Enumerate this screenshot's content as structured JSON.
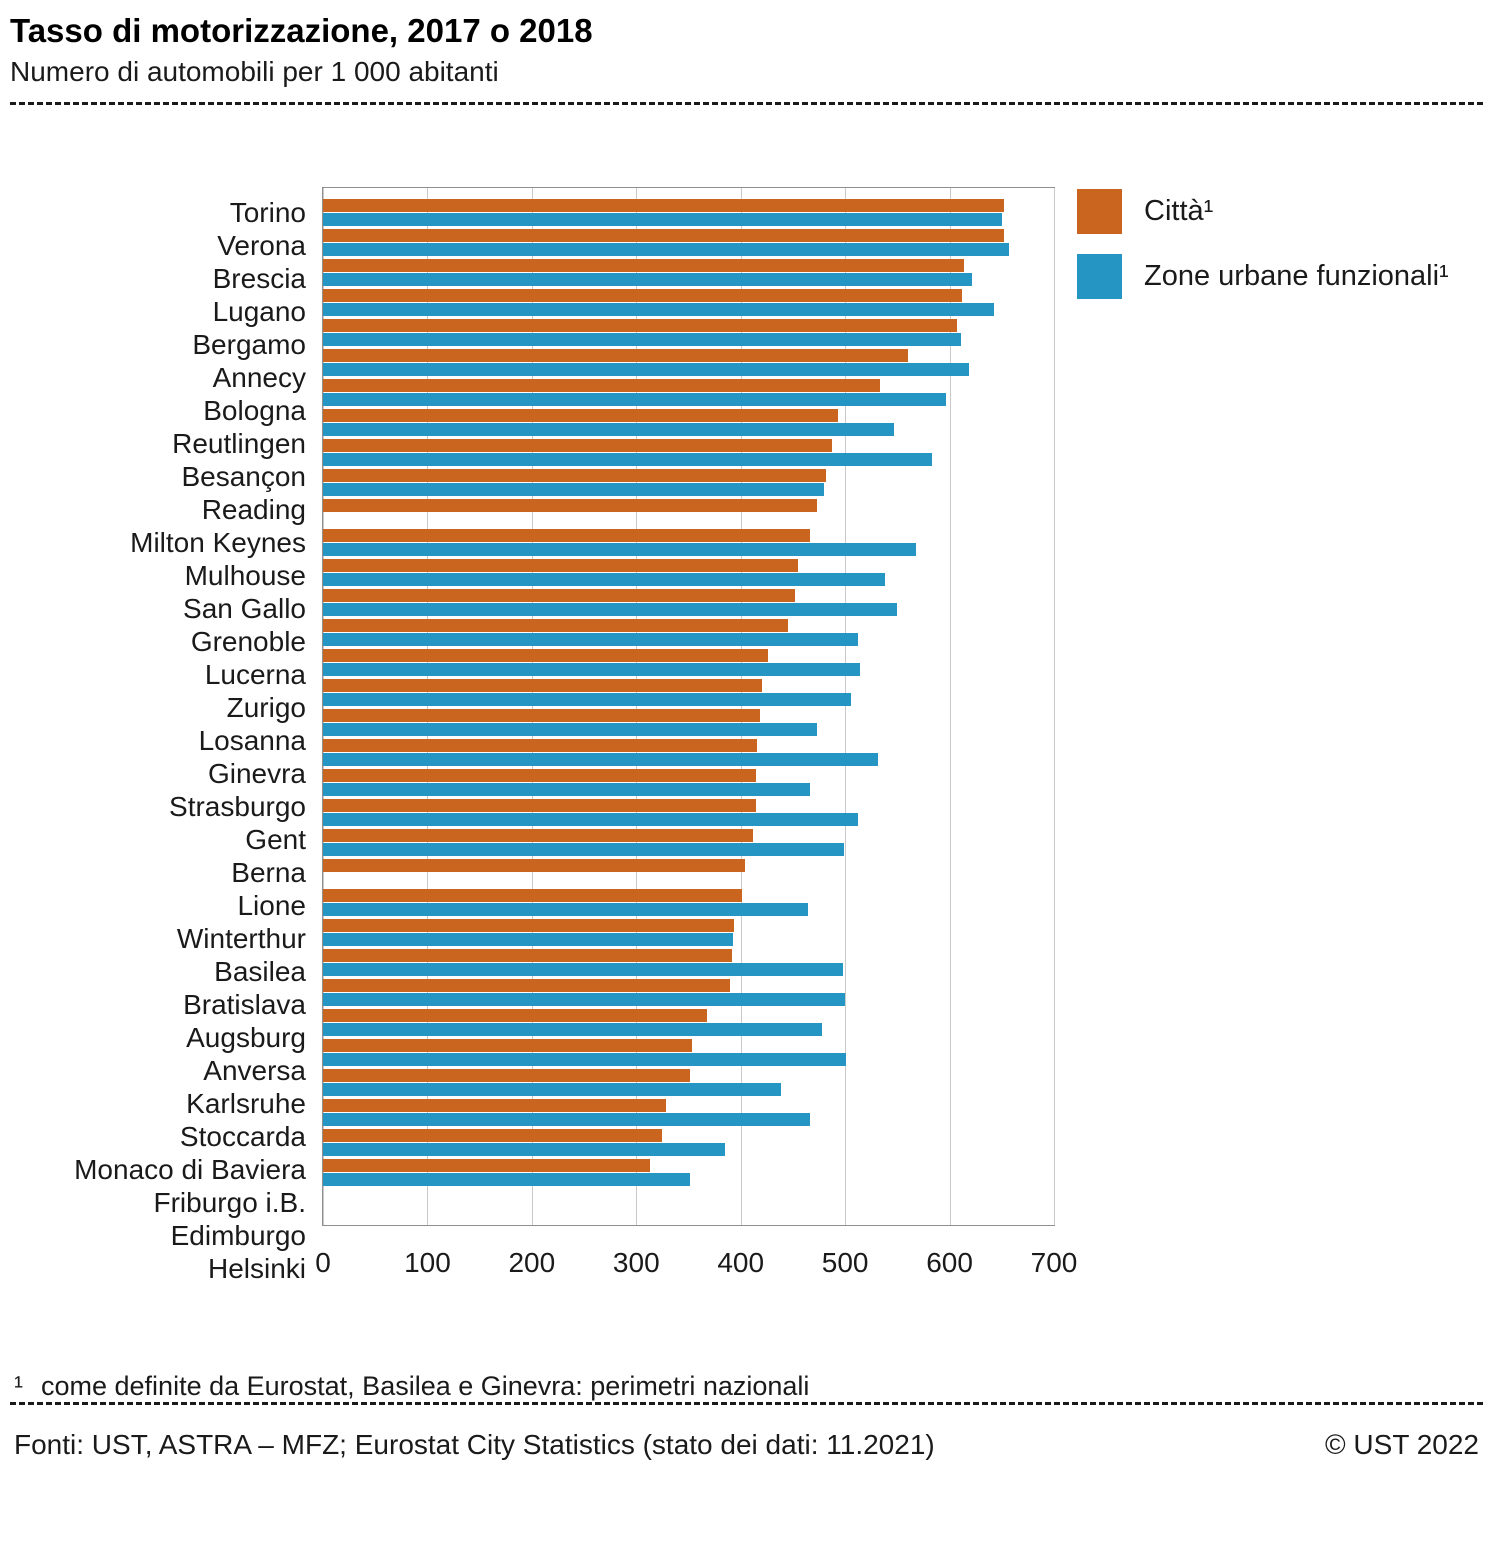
{
  "header": {
    "title": "Tasso di motorizzazione, 2017 o 2018",
    "subtitle": "Numero di automobili per 1 000 abitanti"
  },
  "chart_data": {
    "type": "bar",
    "orientation": "horizontal",
    "title": "Tasso di motorizzazione, 2017 o 2018",
    "xlabel": "",
    "ylabel": "",
    "xlim": [
      0,
      700
    ],
    "xticks": [
      0,
      100,
      200,
      300,
      400,
      500,
      600,
      700
    ],
    "grid": true,
    "legend_position": "top-right",
    "categories": [
      "Torino",
      "Verona",
      "Brescia",
      "Lugano",
      "Bergamo",
      "Annecy",
      "Bologna",
      "Reutlingen",
      "Besançon",
      "Reading",
      "Milton Keynes",
      "Mulhouse",
      "San Gallo",
      "Grenoble",
      "Lucerna",
      "Zurigo",
      "Losanna",
      "Ginevra",
      "Strasburgo",
      "Gent",
      "Berna",
      "Lione",
      "Winterthur",
      "Basilea",
      "Bratislava",
      "Augsburg",
      "Anversa",
      "Karlsruhe",
      "Stoccarda",
      "Monaco di Baviera",
      "Friburgo i.B.",
      "Edimburgo",
      "Helsinki"
    ],
    "series": [
      {
        "name": "Città¹",
        "color": "#c9651f",
        "values": [
          652,
          652,
          614,
          612,
          607,
          560,
          533,
          493,
          487,
          482,
          473,
          466,
          455,
          452,
          445,
          426,
          420,
          418,
          416,
          415,
          415,
          412,
          404,
          401,
          394,
          392,
          390,
          368,
          353,
          351,
          328,
          325,
          313
        ]
      },
      {
        "name": "Zone urbane funzionali¹",
        "color": "#2596c4",
        "values": [
          650,
          657,
          621,
          643,
          611,
          619,
          597,
          547,
          583,
          480,
          null,
          568,
          538,
          550,
          512,
          514,
          506,
          473,
          531,
          466,
          512,
          499,
          null,
          464,
          393,
          498,
          500,
          478,
          501,
          439,
          466,
          385,
          351
        ]
      }
    ]
  },
  "footnote": {
    "marker": "¹",
    "text": "come definite da Eurostat, Basilea e Ginevra: perimetri nazionali"
  },
  "footer": {
    "source": "Fonti: UST, ASTRA – MFZ; Eurostat City Statistics (stato dei dati: 11.2021)",
    "copyright": "© UST 2022"
  }
}
